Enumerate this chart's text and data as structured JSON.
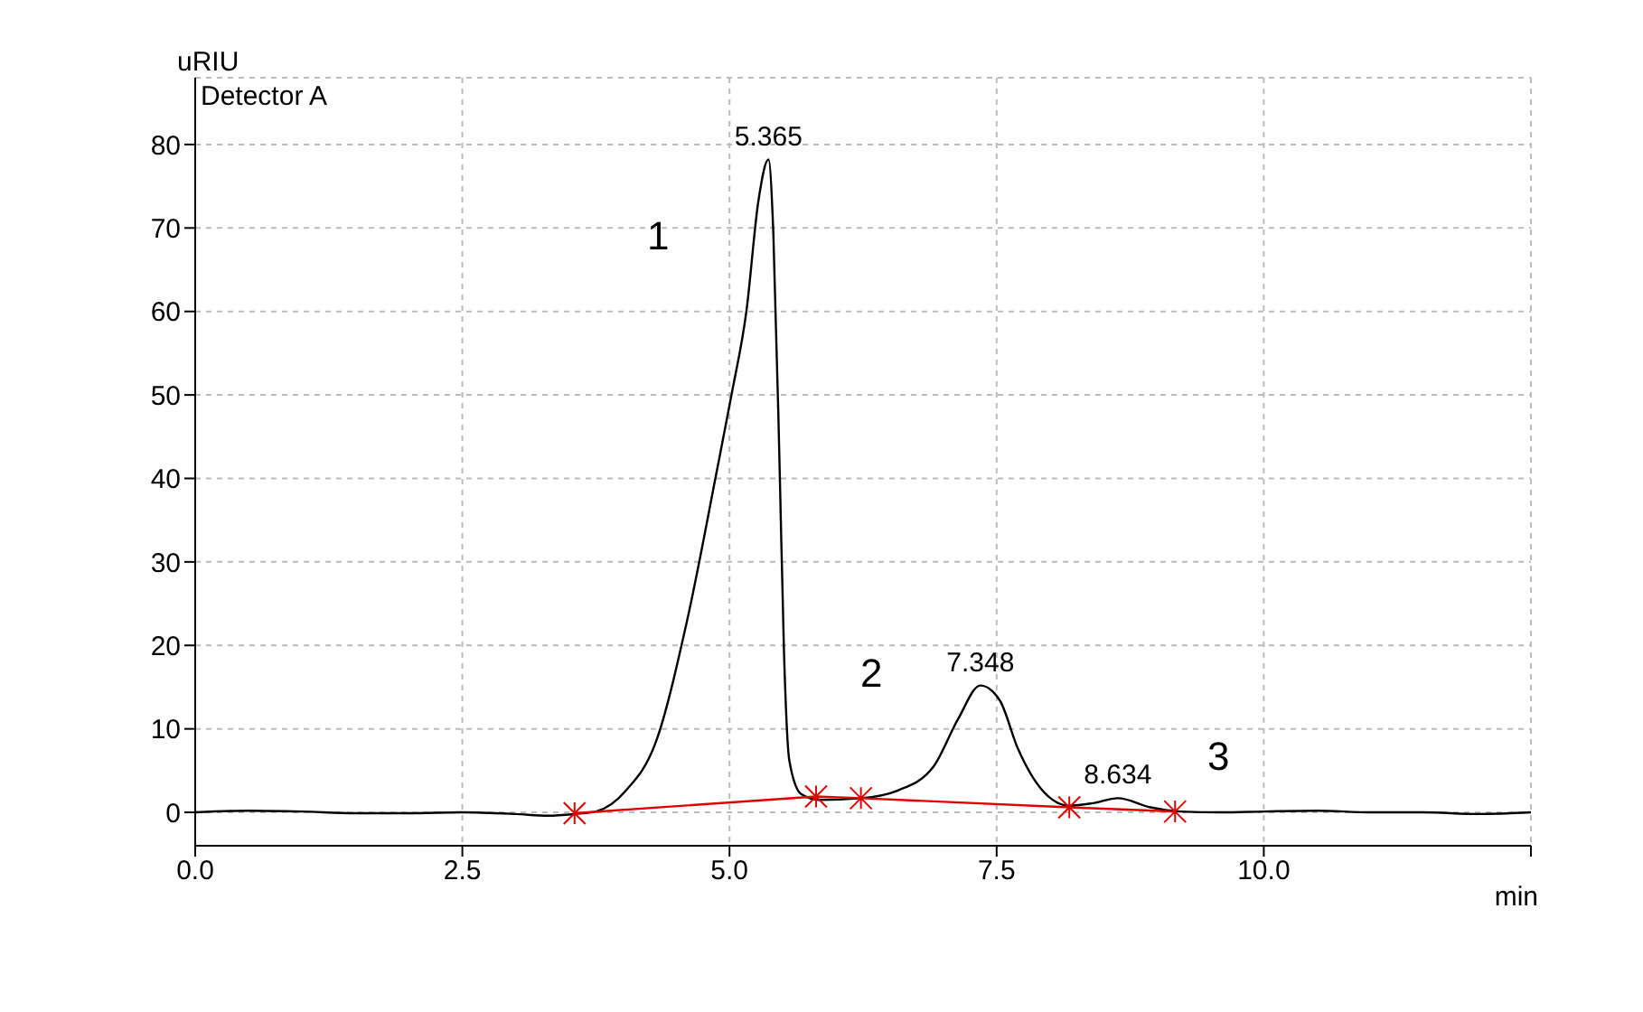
{
  "chart_data": {
    "type": "line",
    "xlabel": "min",
    "ylabel": "uRIU",
    "xlim": [
      0,
      12.5
    ],
    "xticks": [
      {
        "value": 0,
        "label": "0.0"
      },
      {
        "value": 2.5,
        "label": "2.5"
      },
      {
        "value": 5,
        "label": "5.0"
      },
      {
        "value": 7.5,
        "label": "7.5"
      },
      {
        "value": 10,
        "label": "10.0"
      },
      {
        "value": 12.5,
        "label": null
      }
    ],
    "ylim": [
      -4,
      88
    ],
    "yticks": [
      0,
      10,
      20,
      30,
      40,
      50,
      60,
      70,
      80
    ],
    "grid": true,
    "marker": "none",
    "line_style": "solid",
    "series": [
      {
        "color": "#000000",
        "x": [
          0,
          0.5,
          1,
          1.5,
          2,
          2.5,
          3,
          3.3,
          3.55,
          3.75,
          4.03,
          4.31,
          4.6,
          4.88,
          5.02,
          5.16,
          5.27,
          5.365,
          5.41,
          5.47,
          5.51,
          5.56,
          5.67,
          5.84,
          6.23,
          6.57,
          6.91,
          7.14,
          7.348,
          7.53,
          7.7,
          7.93,
          8.18,
          8.4,
          8.634,
          8.94,
          9.22,
          9.6,
          10,
          10.5,
          11,
          11.5,
          12,
          12.5
        ],
        "values": [
          0,
          0.2,
          0.1,
          -0.1,
          -0.1,
          0,
          -0.2,
          -0.4,
          -0.2,
          0.1,
          2.6,
          8.4,
          22.8,
          40.8,
          50.1,
          60.2,
          73.2,
          78.2,
          69.5,
          40.8,
          19.2,
          6.2,
          2.2,
          1.5,
          1.7,
          2.6,
          5.5,
          11.2,
          15.2,
          13.4,
          7.6,
          2.6,
          0.8,
          1.1,
          1.7,
          0.6,
          0.1,
          0,
          0.1,
          0.2,
          0,
          0,
          -0.2,
          0
        ]
      },
      {
        "color": "#e00000",
        "marker": "cross",
        "x": [
          3.55,
          5.81,
          6.23,
          8.18,
          9.17
        ],
        "values": [
          -0.1,
          1.9,
          1.7,
          0.6,
          0.1
        ]
      }
    ],
    "annotations": [
      "Detector A",
      {
        "text": "5.365",
        "x": 5.365,
        "y": 78.2
      },
      {
        "text": "7.348",
        "x": 7.348,
        "y": 15.2
      },
      {
        "text": "8.634",
        "x": 8.634,
        "y": 1.7
      },
      "1",
      "2",
      "3"
    ]
  }
}
